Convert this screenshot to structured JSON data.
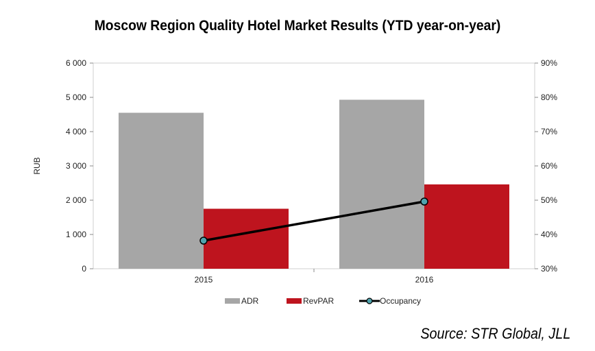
{
  "chart_data": {
    "type": "bar",
    "title": "Moscow Region Quality Hotel Market Results (YTD year-on-year)",
    "source": "Source: STR Global, JLL",
    "categories": [
      "2015",
      "2016"
    ],
    "ylabel": "RUB",
    "ylim": [
      0,
      6000
    ],
    "y_ticks": [
      "0",
      "1 000",
      "2 000",
      "3 000",
      "4 000",
      "5 000",
      "6 000"
    ],
    "y_tick_values": [
      0,
      1000,
      2000,
      3000,
      4000,
      5000,
      6000
    ],
    "y2lim": [
      30,
      90
    ],
    "y2_ticks": [
      "30%",
      "40%",
      "50%",
      "60%",
      "70%",
      "80%",
      "90%"
    ],
    "y2_tick_values": [
      30,
      40,
      50,
      60,
      70,
      80,
      90
    ],
    "series": [
      {
        "name": "ADR",
        "type": "bar",
        "axis": "left",
        "values": [
          4550,
          4930
        ],
        "color": "#a6a6a6"
      },
      {
        "name": "RevPAR",
        "type": "bar",
        "axis": "left",
        "values": [
          1750,
          2460
        ],
        "color": "#be141e"
      },
      {
        "name": "Occupancy",
        "type": "line",
        "axis": "right",
        "values": [
          38.2,
          49.6
        ],
        "color": "#000000",
        "marker_color": "#4fa3ad"
      }
    ],
    "grid": false,
    "legend": "bottom"
  }
}
